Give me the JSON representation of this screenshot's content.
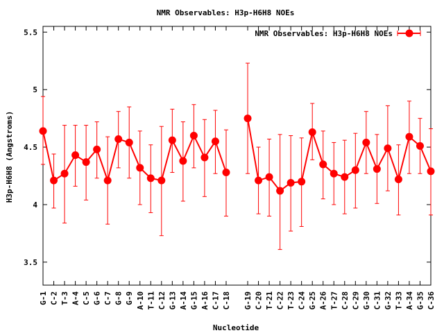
{
  "chart_data": {
    "type": "line",
    "title": "NMR Observables: H3p-H6H8 NOEs",
    "xlabel": "Nucleotide",
    "ylabel": "H3p-H6H8 (Angstroms)",
    "legend": "NMR Observables: H3p-H6H8 NOEs",
    "legend_position": "top-right",
    "ylim": [
      3.3,
      5.55
    ],
    "yticks": [
      3.5,
      4,
      4.5,
      5,
      5.5
    ],
    "series_color": "#ff0000",
    "segments": [
      [
        {
          "label": "G-1",
          "x": 1,
          "y": 4.64,
          "lo": 4.35,
          "hi": 4.94
        },
        {
          "label": "C-2",
          "x": 2,
          "y": 4.21,
          "lo": 3.97,
          "hi": 4.44
        },
        {
          "label": "T-3",
          "x": 3,
          "y": 4.27,
          "lo": 3.84,
          "hi": 4.69
        },
        {
          "label": "A-4",
          "x": 4,
          "y": 4.43,
          "lo": 4.16,
          "hi": 4.69
        },
        {
          "label": "C-5",
          "x": 5,
          "y": 4.37,
          "lo": 4.04,
          "hi": 4.69
        },
        {
          "label": "G-6",
          "x": 6,
          "y": 4.48,
          "lo": 4.23,
          "hi": 4.72
        },
        {
          "label": "C-7",
          "x": 7,
          "y": 4.21,
          "lo": 3.83,
          "hi": 4.59
        },
        {
          "label": "G-8",
          "x": 8,
          "y": 4.57,
          "lo": 4.32,
          "hi": 4.81
        },
        {
          "label": "G-9",
          "x": 9,
          "y": 4.54,
          "lo": 4.23,
          "hi": 4.85
        },
        {
          "label": "A-10",
          "x": 10,
          "y": 4.32,
          "lo": 4.0,
          "hi": 4.64
        },
        {
          "label": "T-11",
          "x": 11,
          "y": 4.23,
          "lo": 3.93,
          "hi": 4.52
        },
        {
          "label": "C-12",
          "x": 12,
          "y": 4.21,
          "lo": 3.73,
          "hi": 4.68
        },
        {
          "label": "G-13",
          "x": 13,
          "y": 4.56,
          "lo": 4.28,
          "hi": 4.83
        },
        {
          "label": "A-14",
          "x": 14,
          "y": 4.38,
          "lo": 4.03,
          "hi": 4.72
        },
        {
          "label": "G-15",
          "x": 15,
          "y": 4.6,
          "lo": 4.32,
          "hi": 4.87
        },
        {
          "label": "A-16",
          "x": 16,
          "y": 4.41,
          "lo": 4.07,
          "hi": 4.74
        },
        {
          "label": "C-17",
          "x": 17,
          "y": 4.55,
          "lo": 4.27,
          "hi": 4.82
        },
        {
          "label": "C-18",
          "x": 18,
          "y": 4.28,
          "lo": 3.9,
          "hi": 4.65
        }
      ],
      [
        {
          "label": "G-19",
          "x": 20,
          "y": 4.75,
          "lo": 4.27,
          "hi": 5.23
        },
        {
          "label": "C-20",
          "x": 21,
          "y": 4.21,
          "lo": 3.92,
          "hi": 4.5
        },
        {
          "label": "T-21",
          "x": 22,
          "y": 4.24,
          "lo": 3.9,
          "hi": 4.57
        },
        {
          "label": "C-22",
          "x": 23,
          "y": 4.12,
          "lo": 3.61,
          "hi": 4.61
        },
        {
          "label": "T-23",
          "x": 24,
          "y": 4.19,
          "lo": 3.77,
          "hi": 4.6
        },
        {
          "label": "C-24",
          "x": 25,
          "y": 4.2,
          "lo": 3.81,
          "hi": 4.58
        },
        {
          "label": "G-25",
          "x": 26,
          "y": 4.63,
          "lo": 4.39,
          "hi": 4.88
        },
        {
          "label": "A-26",
          "x": 27,
          "y": 4.35,
          "lo": 4.05,
          "hi": 4.64
        },
        {
          "label": "T-27",
          "x": 28,
          "y": 4.27,
          "lo": 4.0,
          "hi": 4.54
        },
        {
          "label": "C-28",
          "x": 29,
          "y": 4.24,
          "lo": 3.92,
          "hi": 4.56
        },
        {
          "label": "C-29",
          "x": 30,
          "y": 4.3,
          "lo": 3.97,
          "hi": 4.62
        },
        {
          "label": "G-30",
          "x": 31,
          "y": 4.54,
          "lo": 4.27,
          "hi": 4.81
        },
        {
          "label": "C-31",
          "x": 32,
          "y": 4.31,
          "lo": 4.01,
          "hi": 4.61
        },
        {
          "label": "G-32",
          "x": 33,
          "y": 4.49,
          "lo": 4.12,
          "hi": 4.86
        },
        {
          "label": "T-33",
          "x": 34,
          "y": 4.22,
          "lo": 3.91,
          "hi": 4.52
        },
        {
          "label": "A-34",
          "x": 35,
          "y": 4.59,
          "lo": 4.27,
          "hi": 4.9
        },
        {
          "label": "G-35",
          "x": 36,
          "y": 4.51,
          "lo": 4.27,
          "hi": 4.75
        },
        {
          "label": "C-36",
          "x": 37,
          "y": 4.29,
          "lo": 3.91,
          "hi": 4.66
        }
      ]
    ]
  }
}
